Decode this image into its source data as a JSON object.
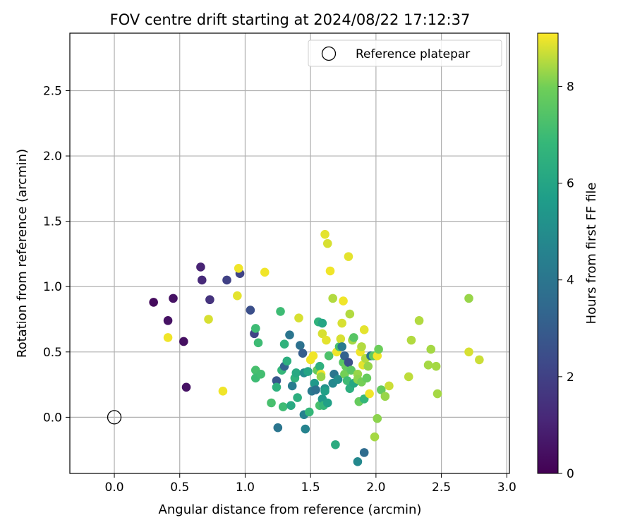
{
  "chart_data": {
    "type": "scatter",
    "title": "FOV centre drift starting at 2024/08/22 17:12:37",
    "xlabel": "Angular distance from reference (arcmin)",
    "ylabel": "Rotation from reference (arcmin)",
    "xlim": [
      -0.34,
      3.02
    ],
    "ylim": [
      -0.43,
      2.94
    ],
    "xticks": [
      0.0,
      0.5,
      1.0,
      1.5,
      2.0,
      2.5,
      3.0
    ],
    "xtick_labels": [
      "0.0",
      "0.5",
      "1.0",
      "1.5",
      "2.0",
      "2.5",
      "3.0"
    ],
    "yticks": [
      0.0,
      0.5,
      1.0,
      1.5,
      2.0,
      2.5
    ],
    "ytick_labels": [
      "0.0",
      "0.5",
      "1.0",
      "1.5",
      "2.0",
      "2.5"
    ],
    "grid": true,
    "legend": {
      "position": "top-right",
      "label": "Reference platepar"
    },
    "reference_point": {
      "x": 0.0,
      "y": 0.0
    },
    "colorbar": {
      "label": "Hours from first FF file",
      "min": 0,
      "max": 9.1,
      "ticks": [
        0,
        2,
        4,
        6,
        8
      ],
      "tick_labels": [
        "0",
        "2",
        "4",
        "6",
        "8"
      ],
      "colormap": "viridis"
    },
    "points": [
      {
        "x": 0.3,
        "y": 0.88,
        "c": 0.3
      },
      {
        "x": 0.41,
        "y": 0.74,
        "c": 0.5
      },
      {
        "x": 0.45,
        "y": 0.91,
        "c": 0.5
      },
      {
        "x": 0.53,
        "y": 0.58,
        "c": 0.4
      },
      {
        "x": 0.55,
        "y": 0.23,
        "c": 0.5
      },
      {
        "x": 0.66,
        "y": 1.15,
        "c": 1.0
      },
      {
        "x": 0.67,
        "y": 1.05,
        "c": 1.2
      },
      {
        "x": 0.73,
        "y": 0.9,
        "c": 1.5
      },
      {
        "x": 0.86,
        "y": 1.05,
        "c": 2.0
      },
      {
        "x": 0.96,
        "y": 1.1,
        "c": 2.1
      },
      {
        "x": 1.04,
        "y": 0.82,
        "c": 2.5
      },
      {
        "x": 1.07,
        "y": 0.64,
        "c": 2.1
      },
      {
        "x": 0.41,
        "y": 0.61,
        "c": 9.0
      },
      {
        "x": 0.72,
        "y": 0.75,
        "c": 8.8
      },
      {
        "x": 0.83,
        "y": 0.2,
        "c": 9.0
      },
      {
        "x": 0.94,
        "y": 0.93,
        "c": 8.9
      },
      {
        "x": 0.95,
        "y": 1.14,
        "c": 9.0
      },
      {
        "x": 1.15,
        "y": 1.11,
        "c": 9.0
      },
      {
        "x": 1.08,
        "y": 0.68,
        "c": 7.0
      },
      {
        "x": 1.1,
        "y": 0.57,
        "c": 7.0
      },
      {
        "x": 1.08,
        "y": 0.36,
        "c": 7.2
      },
      {
        "x": 1.08,
        "y": 0.3,
        "c": 7.0
      },
      {
        "x": 1.12,
        "y": 0.33,
        "c": 7.1
      },
      {
        "x": 1.2,
        "y": 0.11,
        "c": 7.2
      },
      {
        "x": 1.24,
        "y": 0.28,
        "c": 2.8
      },
      {
        "x": 1.24,
        "y": 0.23,
        "c": 6.5
      },
      {
        "x": 1.25,
        "y": -0.08,
        "c": 4.0
      },
      {
        "x": 1.27,
        "y": 0.81,
        "c": 7.0
      },
      {
        "x": 1.28,
        "y": 0.36,
        "c": 6.8
      },
      {
        "x": 1.3,
        "y": 0.56,
        "c": 6.6
      },
      {
        "x": 1.3,
        "y": 0.39,
        "c": 3.2
      },
      {
        "x": 1.29,
        "y": 0.08,
        "c": 7.0
      },
      {
        "x": 1.32,
        "y": 0.43,
        "c": 6.4
      },
      {
        "x": 1.34,
        "y": 0.63,
        "c": 4.0
      },
      {
        "x": 1.35,
        "y": 0.09,
        "c": 6.2
      },
      {
        "x": 1.36,
        "y": 0.24,
        "c": 4.3
      },
      {
        "x": 1.38,
        "y": 0.3,
        "c": 6.6
      },
      {
        "x": 1.39,
        "y": 0.34,
        "c": 6.2
      },
      {
        "x": 1.4,
        "y": 0.15,
        "c": 6.4
      },
      {
        "x": 1.41,
        "y": 0.76,
        "c": 8.8
      },
      {
        "x": 1.42,
        "y": 0.55,
        "c": 3.8
      },
      {
        "x": 1.45,
        "y": 0.34,
        "c": 5.0
      },
      {
        "x": 1.44,
        "y": 0.49,
        "c": 3.0
      },
      {
        "x": 1.45,
        "y": 0.02,
        "c": 4.5
      },
      {
        "x": 1.46,
        "y": -0.09,
        "c": 4.6
      },
      {
        "x": 1.48,
        "y": 0.35,
        "c": 6.0
      },
      {
        "x": 1.49,
        "y": 0.04,
        "c": 6.8
      },
      {
        "x": 1.5,
        "y": 0.44,
        "c": 9.0
      },
      {
        "x": 1.51,
        "y": 0.2,
        "c": 4.1
      },
      {
        "x": 1.52,
        "y": 0.47,
        "c": 9.0
      },
      {
        "x": 1.53,
        "y": 0.26,
        "c": 5.5
      },
      {
        "x": 1.54,
        "y": 0.21,
        "c": 3.8
      },
      {
        "x": 1.55,
        "y": 0.36,
        "c": 7.8
      },
      {
        "x": 1.56,
        "y": 0.73,
        "c": 6.6
      },
      {
        "x": 1.57,
        "y": 0.39,
        "c": 6.5
      },
      {
        "x": 1.57,
        "y": 0.09,
        "c": 7.2
      },
      {
        "x": 1.58,
        "y": 0.33,
        "c": 9.0
      },
      {
        "x": 1.58,
        "y": 0.31,
        "c": 8.3
      },
      {
        "x": 1.59,
        "y": 0.72,
        "c": 6.0
      },
      {
        "x": 1.59,
        "y": 0.64,
        "c": 8.8
      },
      {
        "x": 1.59,
        "y": 0.14,
        "c": 5.5
      },
      {
        "x": 1.6,
        "y": 0.09,
        "c": 6.8
      },
      {
        "x": 1.61,
        "y": 1.4,
        "c": 8.9
      },
      {
        "x": 1.61,
        "y": 0.22,
        "c": 5.2
      },
      {
        "x": 1.61,
        "y": 0.2,
        "c": 5.8
      },
      {
        "x": 1.62,
        "y": 0.59,
        "c": 8.9
      },
      {
        "x": 1.63,
        "y": 1.33,
        "c": 8.8
      },
      {
        "x": 1.63,
        "y": 0.11,
        "c": 5.8
      },
      {
        "x": 1.64,
        "y": 0.47,
        "c": 7.3
      },
      {
        "x": 1.65,
        "y": 1.12,
        "c": 9.0
      },
      {
        "x": 1.67,
        "y": 0.91,
        "c": 8.5
      },
      {
        "x": 1.67,
        "y": 0.26,
        "c": 4.8
      },
      {
        "x": 1.68,
        "y": 0.33,
        "c": 4.0
      },
      {
        "x": 1.69,
        "y": -0.21,
        "c": 6.3
      },
      {
        "x": 1.7,
        "y": 0.5,
        "c": 9.0
      },
      {
        "x": 1.71,
        "y": 0.29,
        "c": 5.0
      },
      {
        "x": 1.72,
        "y": 0.54,
        "c": 7.2
      },
      {
        "x": 1.73,
        "y": 0.6,
        "c": 8.8
      },
      {
        "x": 1.74,
        "y": 0.72,
        "c": 8.8
      },
      {
        "x": 1.74,
        "y": 0.54,
        "c": 4.2
      },
      {
        "x": 1.75,
        "y": 0.89,
        "c": 9.0
      },
      {
        "x": 1.75,
        "y": 0.42,
        "c": 7.5
      },
      {
        "x": 1.76,
        "y": 0.47,
        "c": 3.2
      },
      {
        "x": 1.76,
        "y": 0.33,
        "c": 8.0
      },
      {
        "x": 1.77,
        "y": 0.39,
        "c": 7.8
      },
      {
        "x": 1.78,
        "y": 0.28,
        "c": 7.0
      },
      {
        "x": 1.79,
        "y": 0.42,
        "c": 2.5
      },
      {
        "x": 1.79,
        "y": 1.23,
        "c": 8.9
      },
      {
        "x": 1.8,
        "y": 0.79,
        "c": 8.5
      },
      {
        "x": 1.8,
        "y": 0.22,
        "c": 6.4
      },
      {
        "x": 1.81,
        "y": 0.36,
        "c": 7.6
      },
      {
        "x": 1.82,
        "y": 0.59,
        "c": 8.4
      },
      {
        "x": 1.83,
        "y": 0.61,
        "c": 7.5
      },
      {
        "x": 1.83,
        "y": 0.26,
        "c": 6.1
      },
      {
        "x": 1.86,
        "y": 0.33,
        "c": 8.3
      },
      {
        "x": 1.86,
        "y": 0.29,
        "c": 8.2
      },
      {
        "x": 1.87,
        "y": 0.12,
        "c": 7.8
      },
      {
        "x": 1.88,
        "y": 0.5,
        "c": 9.0
      },
      {
        "x": 1.89,
        "y": 0.54,
        "c": 8.5
      },
      {
        "x": 1.89,
        "y": 0.27,
        "c": 8.0
      },
      {
        "x": 1.9,
        "y": 0.4,
        "c": 8.9
      },
      {
        "x": 1.91,
        "y": 0.67,
        "c": 8.9
      },
      {
        "x": 1.91,
        "y": -0.27,
        "c": 3.6
      },
      {
        "x": 1.91,
        "y": 0.14,
        "c": 6.8
      },
      {
        "x": 1.92,
        "y": 0.45,
        "c": 8.5
      },
      {
        "x": 1.93,
        "y": 0.3,
        "c": 7.8
      },
      {
        "x": 1.94,
        "y": 0.39,
        "c": 8.3
      },
      {
        "x": 1.95,
        "y": 0.18,
        "c": 9.0
      },
      {
        "x": 1.96,
        "y": 0.47,
        "c": 4.0
      },
      {
        "x": 1.98,
        "y": 0.47,
        "c": 7.6
      },
      {
        "x": 1.99,
        "y": -0.15,
        "c": 8.4
      },
      {
        "x": 2.01,
        "y": -0.01,
        "c": 8.2
      },
      {
        "x": 2.01,
        "y": 0.47,
        "c": 9.0
      },
      {
        "x": 2.02,
        "y": 0.52,
        "c": 7.9
      },
      {
        "x": 2.04,
        "y": 0.21,
        "c": 7.8
      },
      {
        "x": 2.07,
        "y": 0.16,
        "c": 8.3
      },
      {
        "x": 2.1,
        "y": 0.24,
        "c": 8.7
      },
      {
        "x": 1.86,
        "y": -0.34,
        "c": 4.8
      },
      {
        "x": 2.25,
        "y": 0.31,
        "c": 8.6
      },
      {
        "x": 2.27,
        "y": 0.59,
        "c": 8.5
      },
      {
        "x": 2.33,
        "y": 0.74,
        "c": 8.5
      },
      {
        "x": 2.4,
        "y": 0.4,
        "c": 8.4
      },
      {
        "x": 2.42,
        "y": 0.52,
        "c": 8.4
      },
      {
        "x": 2.46,
        "y": 0.39,
        "c": 8.4
      },
      {
        "x": 2.47,
        "y": 0.18,
        "c": 8.4
      },
      {
        "x": 2.71,
        "y": 0.91,
        "c": 8.3
      },
      {
        "x": 2.71,
        "y": 0.5,
        "c": 8.8
      },
      {
        "x": 2.79,
        "y": 0.44,
        "c": 8.7
      }
    ]
  }
}
